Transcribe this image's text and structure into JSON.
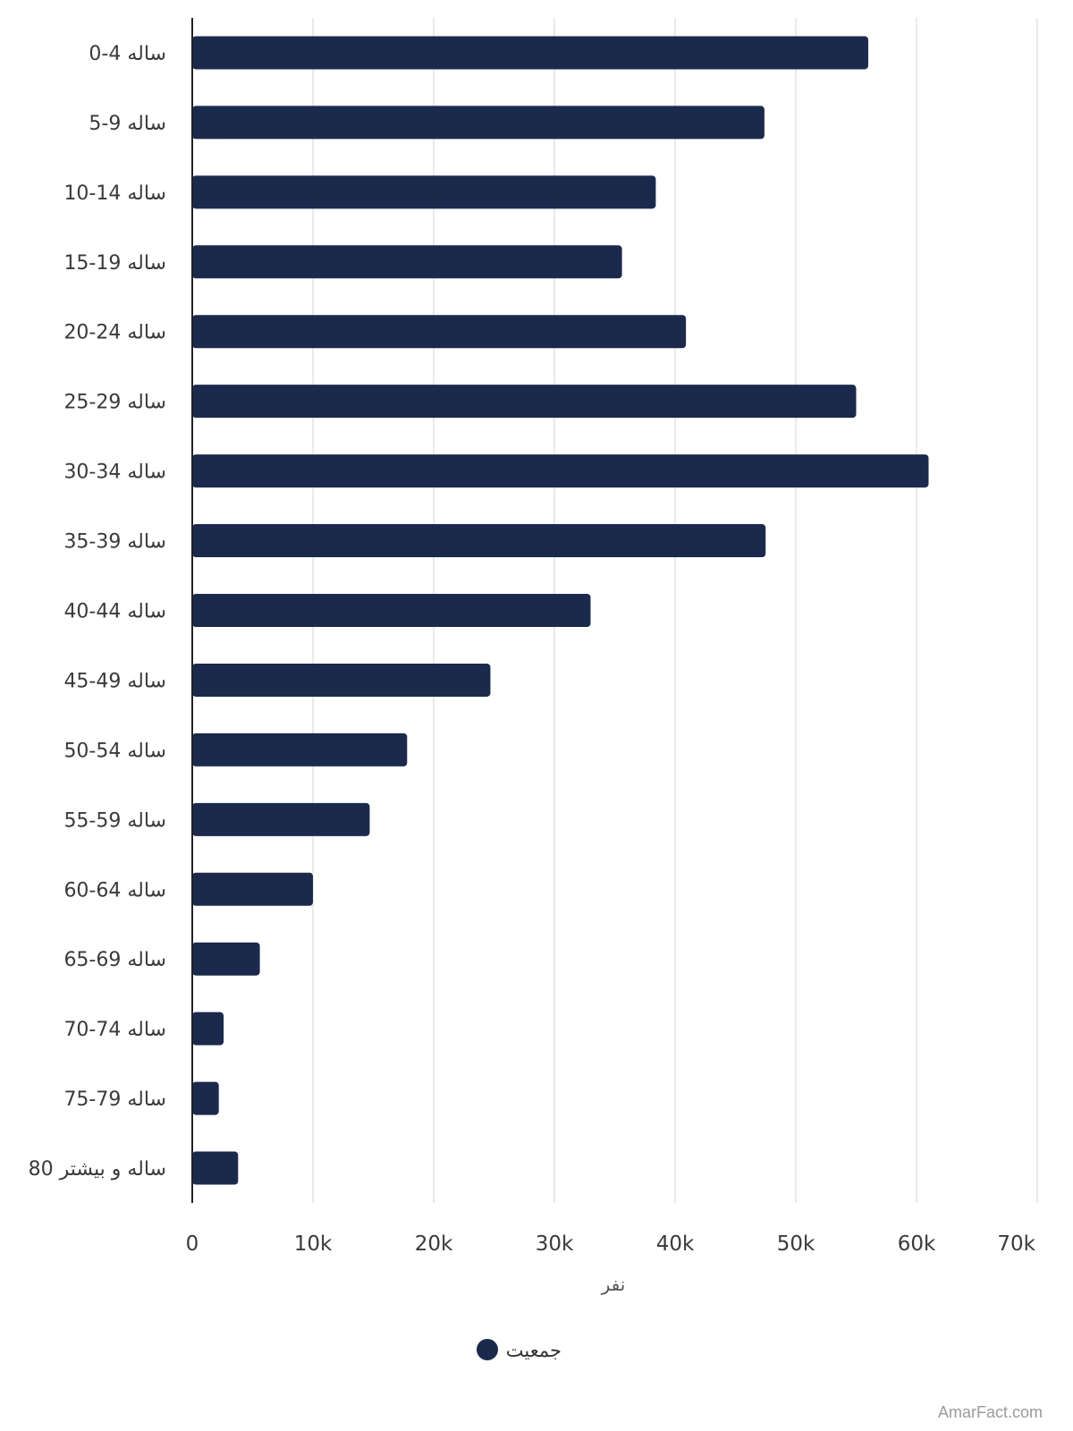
{
  "chart_data": {
    "type": "bar",
    "orientation": "horizontal",
    "categories": [
      "0-4 ساله",
      "5-9 ساله",
      "10-14 ساله",
      "15-19 ساله",
      "20-24 ساله",
      "25-29 ساله",
      "30-34 ساله",
      "35-39 ساله",
      "40-44 ساله",
      "45-49 ساله",
      "50-54 ساله",
      "55-59 ساله",
      "60-64 ساله",
      "65-69 ساله",
      "70-74 ساله",
      "75-79 ساله",
      "80 ساله و بیشتر"
    ],
    "series": [
      {
        "name": "جمعیت",
        "color": "#1b2a4c",
        "values": [
          56000,
          47400,
          38400,
          35600,
          40900,
          55000,
          61000,
          47500,
          33000,
          24700,
          17800,
          14700,
          10000,
          5600,
          2600,
          2200,
          3800
        ]
      }
    ],
    "xlabel": "نفر",
    "xlim": [
      0,
      70000
    ],
    "xticks": [
      0,
      10000,
      20000,
      30000,
      40000,
      50000,
      60000,
      70000
    ],
    "xtick_labels": [
      "0",
      "10k",
      "20k",
      "30k",
      "40k",
      "50k",
      "60k",
      "70k"
    ],
    "grid": "vertical",
    "legend": "bottom-center"
  },
  "watermark": "AmarFact.com"
}
